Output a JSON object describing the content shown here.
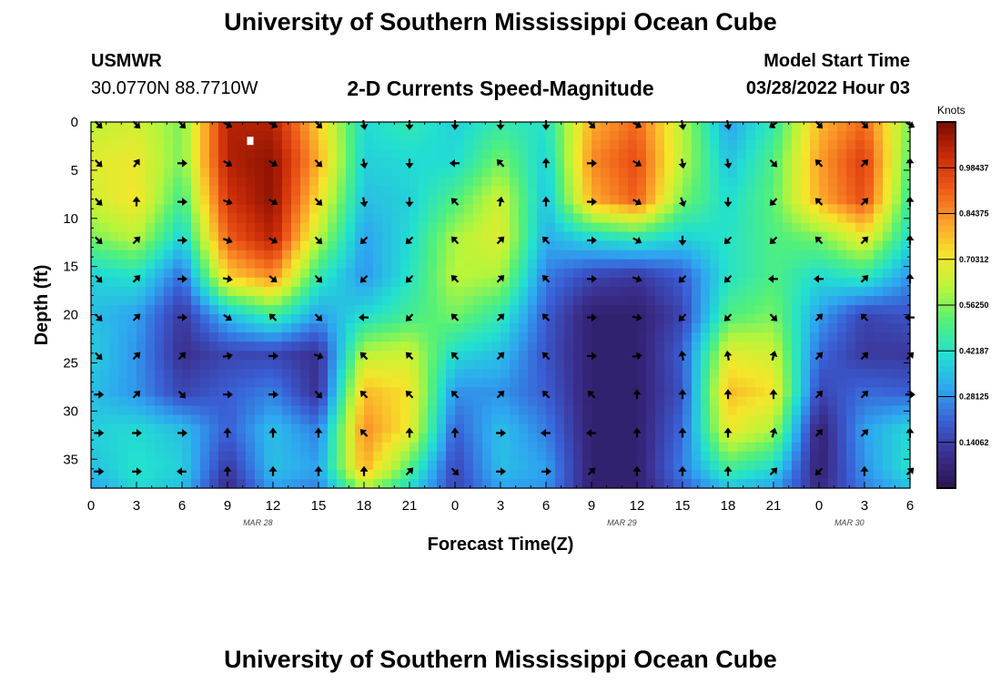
{
  "page": {
    "title": "University of Southern Mississippi Ocean Cube",
    "station_name": "USMWR",
    "station_coords": "30.0770N  88.7710W",
    "subtitle": "2-D Currents Speed-Magnitude",
    "model_start_label": "Model Start Time",
    "model_start_value": "03/28/2022 Hour 03",
    "second_title": "University of Southern Mississippi Ocean Cube"
  },
  "chart_data": {
    "type": "heatmap",
    "xlabel": "Forecast Time(Z)",
    "ylabel": "Depth (ft)",
    "x_tick_labels": [
      "0",
      "3",
      "6",
      "9",
      "12",
      "15",
      "18",
      "21",
      "0",
      "3",
      "6",
      "9",
      "12",
      "15",
      "18",
      "21",
      "0",
      "3",
      "6"
    ],
    "date_labels": [
      {
        "label": "MAR 28",
        "hour_index": 11
      },
      {
        "label": "MAR 29",
        "hour_index": 35
      },
      {
        "label": "MAR 30",
        "hour_index": 50
      }
    ],
    "x_hours": [
      0,
      54
    ],
    "y_ticks": [
      0,
      5,
      10,
      15,
      20,
      25,
      30,
      35
    ],
    "ylim": [
      0,
      38
    ],
    "y_inverted": true,
    "colorbar": {
      "unit": "Knots",
      "range": [
        0,
        1.125
      ],
      "tick_values": [
        0.14062,
        0.28125,
        0.42187,
        0.5625,
        0.70312,
        0.84375,
        0.98437
      ],
      "tick_labels": [
        "0.14062",
        "0.28125",
        "0.42187",
        "0.56250",
        "0.70312",
        "0.84375",
        "0.98437"
      ],
      "colors": [
        "#2a1450",
        "#3b2f8f",
        "#3a5fd6",
        "#2ea7f0",
        "#22e0d0",
        "#52f07a",
        "#b8f53a",
        "#f5e62a",
        "#fca02a",
        "#ee5a18",
        "#c82a08",
        "#7a0c00"
      ]
    },
    "speed_grid": {
      "x_hours": [
        0,
        3,
        6,
        9,
        12,
        15,
        18,
        21,
        24,
        27,
        30,
        33,
        36,
        39,
        42,
        45,
        48,
        51,
        54
      ],
      "depths": [
        0,
        4,
        8,
        12,
        16,
        20,
        24,
        28,
        32,
        36,
        38
      ],
      "values": [
        [
          0.62,
          0.66,
          0.55,
          1.05,
          1.05,
          0.75,
          0.4,
          0.45,
          0.38,
          0.45,
          0.42,
          0.8,
          0.9,
          0.62,
          0.3,
          0.45,
          0.78,
          0.9,
          0.55
        ],
        [
          0.68,
          0.7,
          0.55,
          1.05,
          1.1,
          0.8,
          0.38,
          0.4,
          0.4,
          0.55,
          0.38,
          0.85,
          0.95,
          0.62,
          0.35,
          0.5,
          0.82,
          0.98,
          0.5
        ],
        [
          0.65,
          0.72,
          0.48,
          1.0,
          1.1,
          0.72,
          0.35,
          0.38,
          0.5,
          0.65,
          0.35,
          0.8,
          0.92,
          0.55,
          0.4,
          0.52,
          0.8,
          0.95,
          0.45
        ],
        [
          0.55,
          0.62,
          0.38,
          0.92,
          1.05,
          0.62,
          0.3,
          0.4,
          0.6,
          0.68,
          0.32,
          0.4,
          0.45,
          0.38,
          0.42,
          0.5,
          0.55,
          0.7,
          0.4
        ],
        [
          0.38,
          0.42,
          0.22,
          0.75,
          0.85,
          0.45,
          0.28,
          0.42,
          0.62,
          0.6,
          0.25,
          0.15,
          0.12,
          0.2,
          0.42,
          0.5,
          0.4,
          0.45,
          0.28
        ],
        [
          0.35,
          0.3,
          0.12,
          0.35,
          0.48,
          0.3,
          0.4,
          0.48,
          0.55,
          0.45,
          0.2,
          0.05,
          0.05,
          0.15,
          0.5,
          0.55,
          0.3,
          0.15,
          0.18
        ],
        [
          0.38,
          0.28,
          0.1,
          0.15,
          0.15,
          0.1,
          0.62,
          0.65,
          0.4,
          0.35,
          0.18,
          0.05,
          0.05,
          0.2,
          0.68,
          0.65,
          0.22,
          0.12,
          0.12
        ],
        [
          0.35,
          0.28,
          0.15,
          0.2,
          0.25,
          0.1,
          0.78,
          0.72,
          0.28,
          0.28,
          0.2,
          0.05,
          0.05,
          0.18,
          0.78,
          0.72,
          0.15,
          0.22,
          0.2
        ],
        [
          0.38,
          0.4,
          0.35,
          0.2,
          0.35,
          0.25,
          0.85,
          0.7,
          0.2,
          0.35,
          0.25,
          0.05,
          0.05,
          0.22,
          0.7,
          0.6,
          0.05,
          0.3,
          0.4
        ],
        [
          0.35,
          0.42,
          0.38,
          0.12,
          0.35,
          0.3,
          0.8,
          0.5,
          0.15,
          0.35,
          0.3,
          0.05,
          0.05,
          0.25,
          0.48,
          0.4,
          0.05,
          0.28,
          0.42
        ],
        [
          0.3,
          0.4,
          0.35,
          0.08,
          0.3,
          0.25,
          0.6,
          0.4,
          0.15,
          0.3,
          0.28,
          0.05,
          0.05,
          0.2,
          0.35,
          0.3,
          0.08,
          0.25,
          0.35
        ]
      ]
    },
    "vector_arrows": {
      "x_hours": [
        0.5,
        3,
        6,
        9,
        12,
        15,
        18,
        21,
        24,
        27,
        30,
        33,
        36,
        39,
        42,
        45,
        48,
        51,
        54
      ],
      "depths": [
        0,
        4,
        8,
        12,
        16,
        20,
        24,
        28,
        32,
        36
      ],
      "directions_deg": [
        [
          135,
          135,
          135,
          120,
          120,
          135,
          170,
          180,
          180,
          180,
          180,
          135,
          120,
          170,
          170,
          235,
          135,
          135,
          120
        ],
        [
          135,
          35,
          90,
          120,
          120,
          135,
          170,
          180,
          270,
          315,
          0,
          90,
          120,
          170,
          170,
          135,
          315,
          45,
          0
        ],
        [
          135,
          0,
          90,
          110,
          120,
          135,
          170,
          180,
          315,
          10,
          0,
          90,
          120,
          160,
          180,
          225,
          315,
          45,
          0
        ],
        [
          135,
          45,
          90,
          110,
          120,
          135,
          225,
          225,
          315,
          45,
          315,
          90,
          120,
          180,
          225,
          225,
          315,
          45,
          0
        ],
        [
          135,
          45,
          90,
          100,
          130,
          135,
          225,
          225,
          315,
          45,
          315,
          90,
          110,
          225,
          225,
          270,
          270,
          45,
          0
        ],
        [
          135,
          45,
          90,
          125,
          315,
          135,
          270,
          225,
          315,
          45,
          315,
          90,
          100,
          225,
          225,
          135,
          45,
          315,
          270
        ],
        [
          135,
          45,
          45,
          80,
          90,
          110,
          315,
          315,
          315,
          45,
          315,
          90,
          80,
          350,
          350,
          15,
          45,
          45,
          45
        ],
        [
          90,
          45,
          135,
          90,
          90,
          135,
          315,
          315,
          315,
          45,
          315,
          315,
          0,
          0,
          0,
          0,
          45,
          45,
          90
        ],
        [
          90,
          90,
          90,
          0,
          0,
          0,
          315,
          0,
          0,
          90,
          270,
          270,
          0,
          0,
          0,
          15,
          45,
          45,
          0
        ],
        [
          90,
          90,
          270,
          0,
          0,
          0,
          0,
          45,
          135,
          90,
          90,
          45,
          0,
          0,
          0,
          45,
          225,
          0,
          45
        ]
      ]
    },
    "marker": {
      "hour": 10.5,
      "depth": 2
    }
  }
}
